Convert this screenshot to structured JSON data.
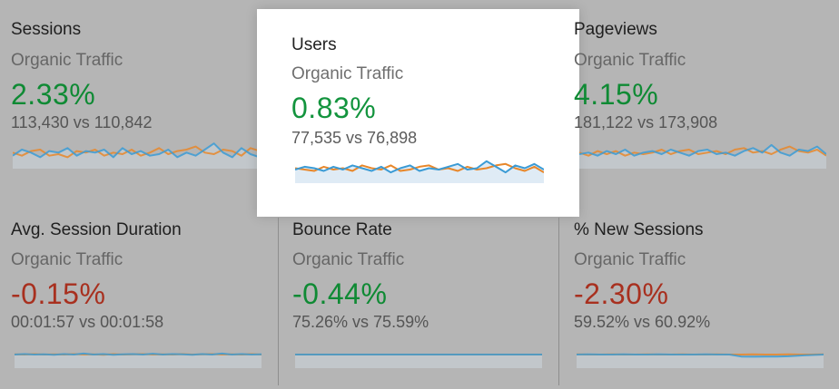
{
  "colors": {
    "positive": "#13943e",
    "negative": "#b8352a",
    "series_current": "#3b9bd5",
    "series_previous": "#e8872a",
    "area_fill": "#dbe9f4",
    "dim_background": "#b5b5b5"
  },
  "scorecards": [
    {
      "metric": "Sessions",
      "segment": "Organic Traffic",
      "change": "2.33%",
      "trend": "positive",
      "comparison": "113,430 vs 110,842",
      "highlighted": false
    },
    {
      "metric": "Users",
      "segment": "Organic Traffic",
      "change": "0.83%",
      "trend": "positive",
      "comparison": "77,535 vs 76,898",
      "highlighted": true
    },
    {
      "metric": "Pageviews",
      "segment": "Organic Traffic",
      "change": "4.15%",
      "trend": "positive",
      "comparison": "181,122 vs 173,908",
      "highlighted": false
    },
    {
      "metric": "Avg. Session Duration",
      "segment": "Organic Traffic",
      "change": "-0.15%",
      "trend": "negative",
      "comparison": "00:01:57 vs 00:01:58",
      "highlighted": false
    },
    {
      "metric": "Bounce Rate",
      "segment": "Organic Traffic",
      "change": "-0.44%",
      "trend": "positive",
      "comparison": "75.26% vs 75.59%",
      "highlighted": false
    },
    {
      "metric": "% New Sessions",
      "segment": "Organic Traffic",
      "change": "-2.30%",
      "trend": "negative",
      "comparison": "59.52% vs 60.92%",
      "highlighted": false
    }
  ]
}
